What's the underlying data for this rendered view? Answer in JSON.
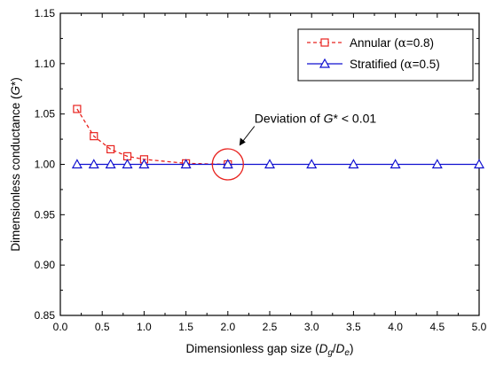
{
  "chart_data": {
    "type": "line",
    "title": "",
    "xlabel": {
      "prefix": "Dimensionless gap size (",
      "var1": "D",
      "sub1": "g",
      "sep": "/",
      "var2": "D",
      "sub2": "e",
      "suffix": ")"
    },
    "ylabel": {
      "prefix": "Dimensionless conductance (",
      "var": "G",
      "suffix": "*)"
    },
    "xlim": [
      0.0,
      5.0
    ],
    "ylim": [
      0.85,
      1.15
    ],
    "xticks": [
      "0.0",
      "0.5",
      "1.0",
      "1.5",
      "2.0",
      "2.5",
      "3.0",
      "3.5",
      "4.0",
      "4.5",
      "5.0"
    ],
    "yticks": [
      "0.85",
      "0.90",
      "0.95",
      "1.00",
      "1.05",
      "1.10",
      "1.15"
    ],
    "grid": false,
    "legend_position": "top-right",
    "series": [
      {
        "name_prefix": "Annular (",
        "name_greek": "α",
        "name_suffix": "=0.8)",
        "color": "#e8231f",
        "line_style": "dashed",
        "marker": "square",
        "x": [
          0.2,
          0.4,
          0.6,
          0.8,
          1.0,
          1.5,
          2.0
        ],
        "y": [
          1.055,
          1.028,
          1.015,
          1.008,
          1.005,
          1.001,
          1.0
        ]
      },
      {
        "name_prefix": "Stratified (",
        "name_greek": "α",
        "name_suffix": "=0.5)",
        "color": "#1010d0",
        "line_style": "solid",
        "marker": "triangle",
        "x": [
          0.2,
          0.4,
          0.6,
          0.8,
          1.0,
          1.5,
          2.0,
          2.5,
          3.0,
          3.5,
          4.0,
          4.5,
          5.0
        ],
        "y": [
          1.0,
          1.0,
          1.0,
          1.0,
          1.0,
          1.0,
          1.0,
          1.0,
          1.0,
          1.0,
          1.0,
          1.0,
          1.0
        ]
      }
    ],
    "annotation": {
      "text_prefix": "Deviation of ",
      "text_var": "G",
      "text_suffix": "* < 0.01",
      "circle_at": [
        2.0,
        1.0
      ],
      "circle_color": "#e8231f"
    }
  }
}
